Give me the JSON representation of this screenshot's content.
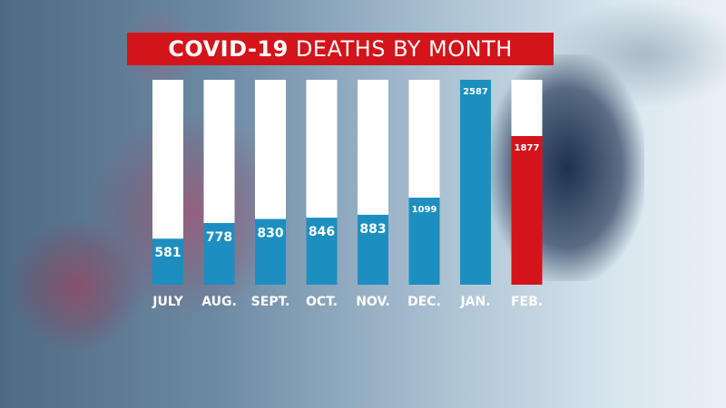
{
  "title": {
    "bold": "COVID-19",
    "rest": "DEATHS BY MONTH"
  },
  "colors": {
    "bar_fill": "#1c8fc0",
    "bar_highlight": "#d4141b",
    "bar_track": "#ffffff",
    "title_bg": "#d4141b"
  },
  "chart_data": {
    "type": "bar",
    "title": "COVID-19 DEATHS BY MONTH",
    "categories": [
      "JULY",
      "AUG.",
      "SEPT.",
      "OCT.",
      "NOV.",
      "DEC.",
      "JAN.",
      "FEB."
    ],
    "values": [
      581,
      778,
      830,
      846,
      883,
      1099,
      2587,
      1877
    ],
    "labels": [
      "581",
      "778",
      "830",
      "846",
      "883",
      "1099",
      "2587",
      "1877"
    ],
    "highlight_index": 7,
    "xlabel": "",
    "ylabel": "",
    "ylim": [
      0,
      2587
    ],
    "grid": false,
    "legend": "none"
  }
}
